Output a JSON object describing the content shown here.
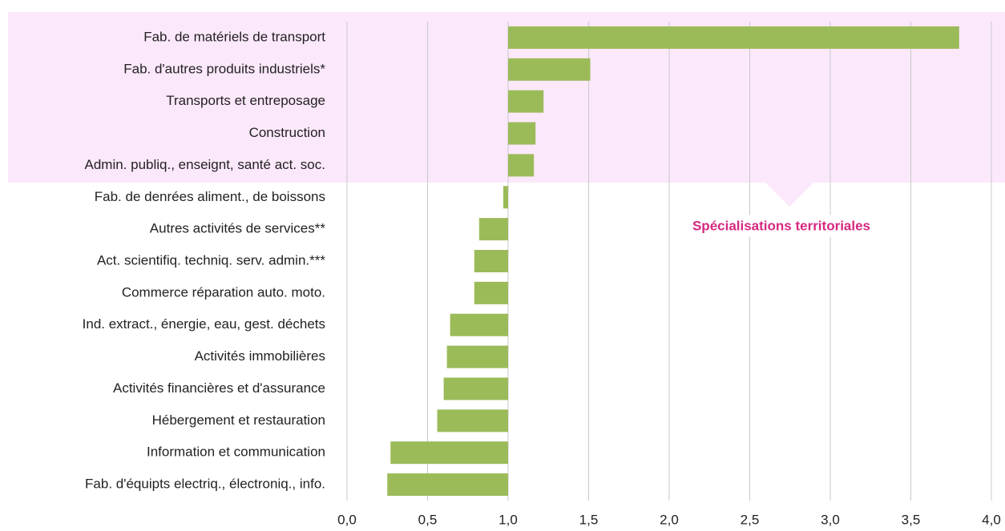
{
  "chart_data": {
    "type": "bar",
    "orientation": "horizontal",
    "baseline": 1,
    "annotation": "Spécialisations territoriales",
    "categories": [
      "Fab. de matériels de transport",
      "Fab. d'autres produits industriels*",
      "Transports et entreposage",
      "Construction",
      "Admin. publiq., enseignt, santé act. soc.",
      "Fab. de denrées aliment., de boissons",
      "Autres activités de services**",
      "Act. scientifiq. techniq. serv. admin.***",
      "Commerce réparation auto. moto.",
      "Ind. extract., énergie, eau, gest. déchets",
      "Activités immobilières",
      "Activités financières et d'assurance",
      "Hébergement et restauration",
      "Information et communication",
      "Fab. d'équipts electriq., électroniq., info."
    ],
    "values": [
      3.8,
      1.51,
      1.22,
      1.17,
      1.16,
      0.97,
      0.82,
      0.79,
      0.79,
      0.64,
      0.62,
      0.6,
      0.56,
      0.27,
      0.25
    ],
    "color": "#9bbb59",
    "xlim": [
      0,
      4
    ],
    "xticks": [
      {
        "value": 0,
        "label": "0,0"
      },
      {
        "value": 0.5,
        "label": "0,5"
      },
      {
        "value": 1,
        "label": "1,0"
      },
      {
        "value": 1.5,
        "label": "1,5"
      },
      {
        "value": 2,
        "label": "2,0"
      },
      {
        "value": 2.5,
        "label": "2,5"
      },
      {
        "value": 3,
        "label": "3,0"
      },
      {
        "value": 3.5,
        "label": "3,5"
      },
      {
        "value": 4,
        "label": "4,0"
      }
    ],
    "grid": true
  }
}
